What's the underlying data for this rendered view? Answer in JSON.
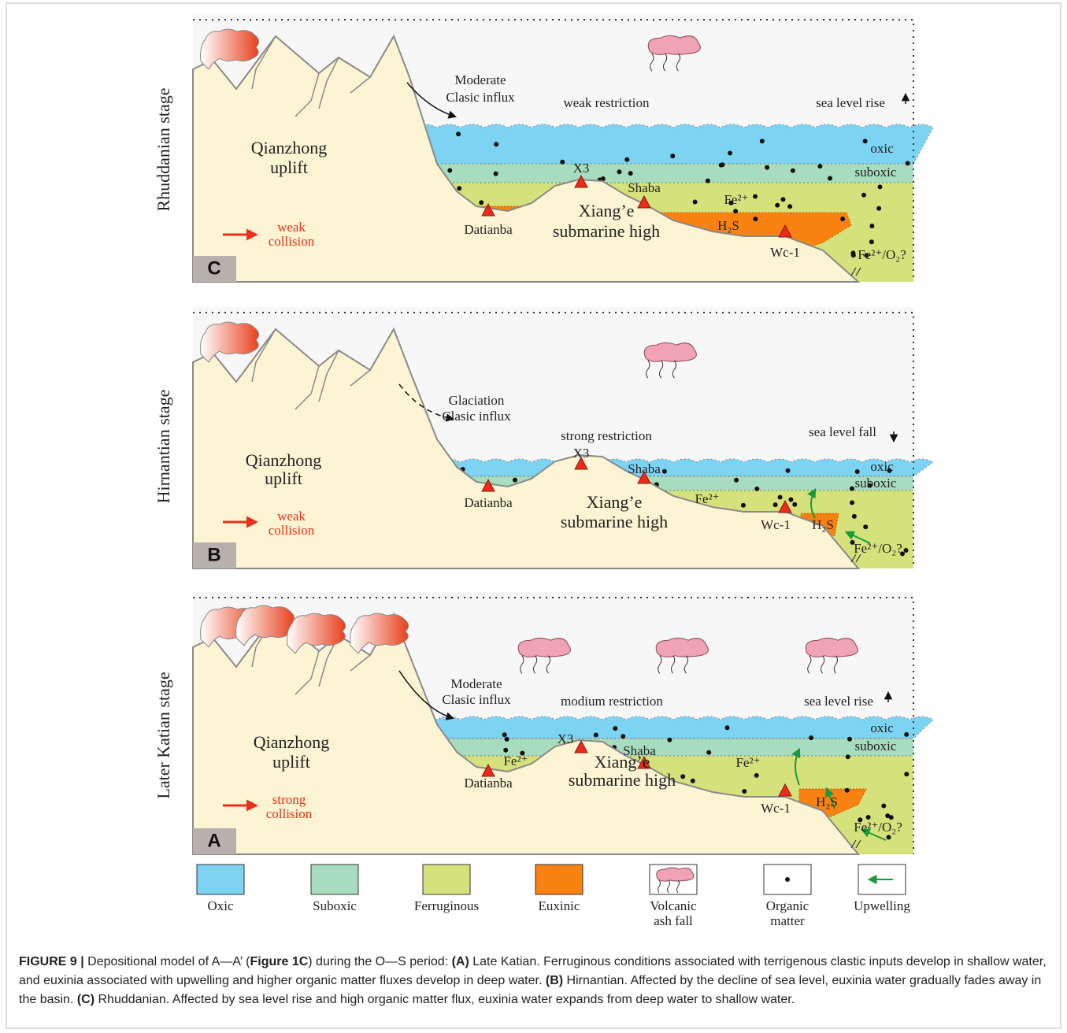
{
  "panels": [
    {
      "label": "C",
      "stage": "Rhuddanian stage",
      "influx": [
        "Moderate",
        "Clasic influx"
      ],
      "restriction": "weak restriction",
      "sea_level": "sea level rise",
      "oxic": "oxic",
      "suboxic": "suboxic",
      "x3": "X3",
      "shaba": "Shaba",
      "datianba": "Datianba",
      "high": [
        "Xiang’e",
        "submarine high"
      ],
      "uplift": [
        "Qianzhong",
        "uplift"
      ],
      "fe": [
        "Fe²⁺"
      ],
      "h2s": "H₂S",
      "wc1": "Wc-1",
      "fe_o2": "Fe²⁺/O₂?",
      "collision": [
        "weak",
        "collision"
      ]
    },
    {
      "label": "B",
      "stage": "Hirnantian stage",
      "influx": [
        "Glaciation",
        "Clasic influx"
      ],
      "restriction": "strong restriction",
      "sea_level": "sea level fall",
      "oxic": "oxic",
      "suboxic": "suboxic",
      "x3": "X3",
      "shaba": "Shaba",
      "datianba": "Datianba",
      "high": [
        "Xiang’e",
        "submarine high"
      ],
      "uplift": [
        "Qianzhong",
        "uplift"
      ],
      "fe": [
        "Fe²⁺"
      ],
      "h2s": "H₂S",
      "wc1": "Wc-1",
      "fe_o2": "Fe²⁺/O₂?",
      "collision": [
        "weak",
        "collision"
      ]
    },
    {
      "label": "A",
      "stage": "Later Katian stage",
      "influx": [
        "Moderate",
        "Clasic influx"
      ],
      "restriction": "modium restriction",
      "sea_level": "sea level rise",
      "oxic": "oxic",
      "suboxic": "suboxic",
      "x3": "X3",
      "shaba": "Shaba",
      "datianba": "Datianba",
      "high": [
        "Xiang’e",
        "submarine high"
      ],
      "uplift": [
        "Qianzhong",
        "uplift"
      ],
      "fe": [
        "Fe²⁺",
        "Fe²⁺"
      ],
      "h2s": "H₂S",
      "wc1": "Wc-1",
      "fe_o2": "Fe²⁺/O₂?",
      "collision": [
        "strong",
        "collision"
      ]
    }
  ],
  "legend": [
    {
      "label": [
        "Oxic"
      ]
    },
    {
      "label": [
        "Suboxic"
      ]
    },
    {
      "label": [
        "Ferruginous"
      ]
    },
    {
      "label": [
        "Euxinic"
      ]
    },
    {
      "label": [
        "Volcanic",
        "ash fall"
      ]
    },
    {
      "label": [
        "Organic",
        "matter"
      ]
    },
    {
      "label": [
        "Upwelling"
      ]
    }
  ],
  "caption": {
    "parts": [
      {
        "text": "FIGURE 9 | ",
        "bold": true
      },
      {
        "text": "Depositional model of A—A’ (",
        "bold": false
      },
      {
        "text": "Figure 1C",
        "bold": true
      },
      {
        "text": ") during the O—S period: ",
        "bold": false
      },
      {
        "text": "(A)",
        "bold": true
      },
      {
        "text": " Late Katian. Ferruginous conditions associated with terrigenous clastic inputs develop in shallow water, and euxinia associated with upwelling and higher organic matter fluxes develop in deep water. ",
        "bold": false
      },
      {
        "text": "(B)",
        "bold": true
      },
      {
        "text": " Hirnantian. Affected by the decline of sea level, euxinia water gradually fades away in the basin. ",
        "bold": false
      },
      {
        "text": "(C)",
        "bold": true
      },
      {
        "text": " Rhuddanian. Affected by sea level rise and high organic matter flux, euxinia water expands from deep water to shallow water.",
        "bold": false
      }
    ]
  }
}
